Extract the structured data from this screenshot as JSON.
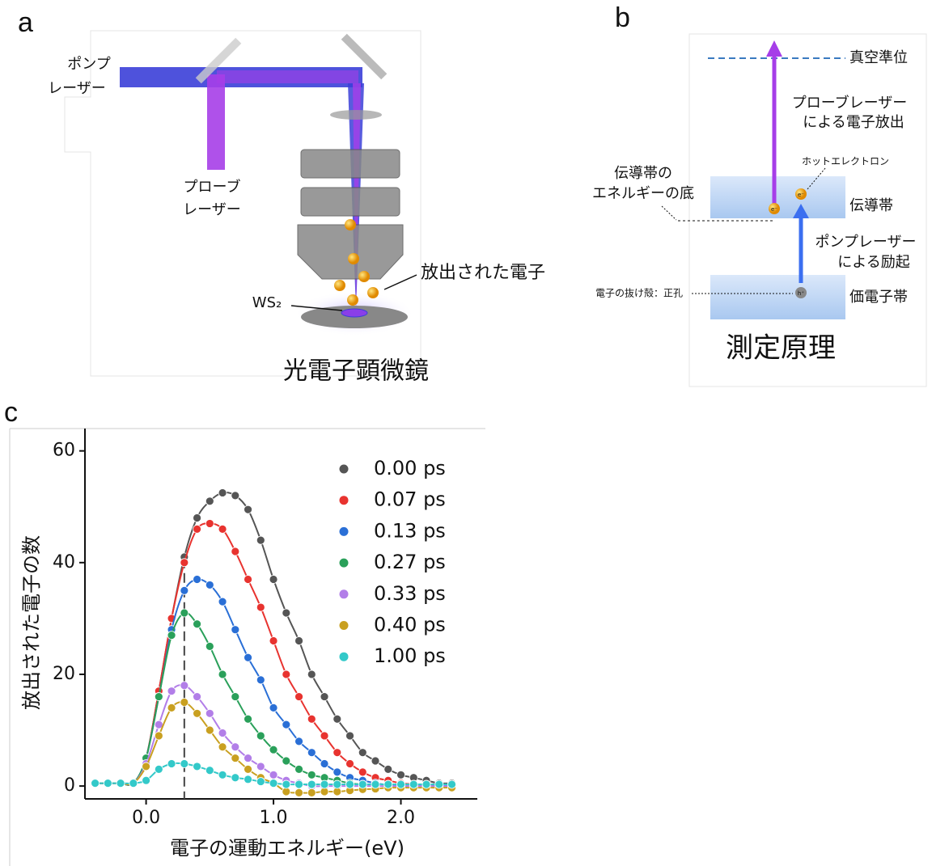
{
  "panel_a": {
    "label": "a",
    "pump_laser": [
      "ポンプ",
      "レーザー"
    ],
    "probe_laser": [
      "プローブ",
      "レーザー"
    ],
    "emitted_electrons": "放出された電子",
    "sample": "WS₂",
    "electron": "e⁻",
    "caption": "光電子顕微鏡"
  },
  "panel_b": {
    "label": "b",
    "vacuum_level": "真空準位",
    "probe_emission": [
      "プローブレーザー",
      "による電子放出"
    ],
    "hot_electron": "ホットエレクトロン",
    "cb_bottom": [
      "伝導帯の",
      "エネルギーの底"
    ],
    "conduction_band": "伝導帯",
    "pump_excitation": [
      "ポンプレーザー",
      "による励起"
    ],
    "hole": "電子の抜け殻：正孔",
    "hole_symbol": "h⁺",
    "electron": "e⁻",
    "valence_band": "価電子帯",
    "caption": "測定原理"
  },
  "panel_c": {
    "label": "c"
  },
  "chart_data": {
    "type": "scatter",
    "x_label": "電子の運動エネルギー(eV)",
    "y_label": "放出された電子の数",
    "xlim": [
      -0.48,
      2.6
    ],
    "ylim": [
      -2.3,
      64
    ],
    "xticks": [
      {
        "value": 0,
        "label": "0.0"
      },
      {
        "value": 1,
        "label": "1.0"
      },
      {
        "value": 2,
        "label": "2.0"
      }
    ],
    "yticks": [
      0,
      20,
      40,
      60
    ],
    "vline": 0.3,
    "legend": "upper-right",
    "x": [
      -0.4,
      -0.3,
      -0.2,
      -0.1,
      0.0,
      0.1,
      0.2,
      0.3,
      0.4,
      0.5,
      0.6,
      0.7,
      0.8,
      0.9,
      1.0,
      1.1,
      1.2,
      1.3,
      1.4,
      1.5,
      1.6,
      1.7,
      1.8,
      1.9,
      2.0,
      2.1,
      2.2,
      2.3,
      2.4
    ],
    "series": [
      {
        "name": "0.00 ps",
        "color": "#555555",
        "values": [
          0.5,
          0.5,
          0.5,
          0.5,
          5,
          17,
          30,
          41,
          48,
          51,
          52.5,
          52,
          49.5,
          44,
          37,
          31,
          26,
          20,
          16,
          12,
          9,
          6,
          4.5,
          3,
          2,
          1.5,
          1,
          0.5,
          0.5
        ]
      },
      {
        "name": "0.07 ps",
        "color": "#e8332f",
        "values": [
          0.5,
          0.5,
          0.5,
          0.5,
          5,
          17,
          30,
          40,
          46,
          47,
          46,
          42,
          37,
          32,
          26,
          20,
          16,
          12,
          9,
          6,
          4,
          2.5,
          1.5,
          1,
          0.5,
          0.3,
          0.2,
          0,
          0
        ]
      },
      {
        "name": "0.13 ps",
        "color": "#2a6fd6",
        "values": [
          0.5,
          0.5,
          0.5,
          0.5,
          5,
          16,
          28,
          35,
          37,
          36,
          33,
          28,
          23,
          19,
          14,
          11,
          8,
          6,
          4,
          2.5,
          1.5,
          1,
          0.5,
          0.2,
          0,
          0,
          0,
          0,
          0
        ]
      },
      {
        "name": "0.27 ps",
        "color": "#2aa05a",
        "values": [
          0.5,
          0.5,
          0.5,
          0.5,
          5,
          16,
          27,
          31,
          29,
          25,
          20,
          16,
          12,
          9,
          6.5,
          4.5,
          3,
          2,
          1.5,
          1,
          0.5,
          0.3,
          0.3,
          0.3,
          0.3,
          0.3,
          0.3,
          0.3,
          0.3
        ]
      },
      {
        "name": "0.33 ps",
        "color": "#b27ee8",
        "values": [
          0.5,
          0.5,
          0.5,
          0.5,
          4,
          11,
          17,
          18,
          16,
          13,
          9.5,
          7,
          5,
          3.5,
          2,
          1,
          0.5,
          0,
          0,
          0,
          0,
          0,
          0,
          0,
          0,
          0,
          0,
          0,
          0
        ]
      },
      {
        "name": "0.40 ps",
        "color": "#c9a020",
        "values": [
          0.5,
          0.5,
          0.5,
          0.5,
          3.5,
          9,
          14,
          15,
          13,
          10,
          7,
          5,
          3,
          1.5,
          0.5,
          -1,
          -1.2,
          -1.2,
          -1,
          -1,
          -0.8,
          -0.6,
          -0.5,
          -0.3,
          -0.3,
          -0.3,
          -0.3,
          -0.3,
          -0.3
        ]
      },
      {
        "name": "1.00 ps",
        "color": "#33c9c9",
        "values": [
          0.5,
          0.5,
          0.5,
          0.5,
          1,
          3,
          4,
          4,
          3.5,
          2.8,
          2,
          1.5,
          1.2,
          0.8,
          0.5,
          0.3,
          0.3,
          0.3,
          0.3,
          0.3,
          0.3,
          0.3,
          0.3,
          0.3,
          0.3,
          0.3,
          0.3,
          0.3,
          0.3
        ]
      }
    ]
  }
}
